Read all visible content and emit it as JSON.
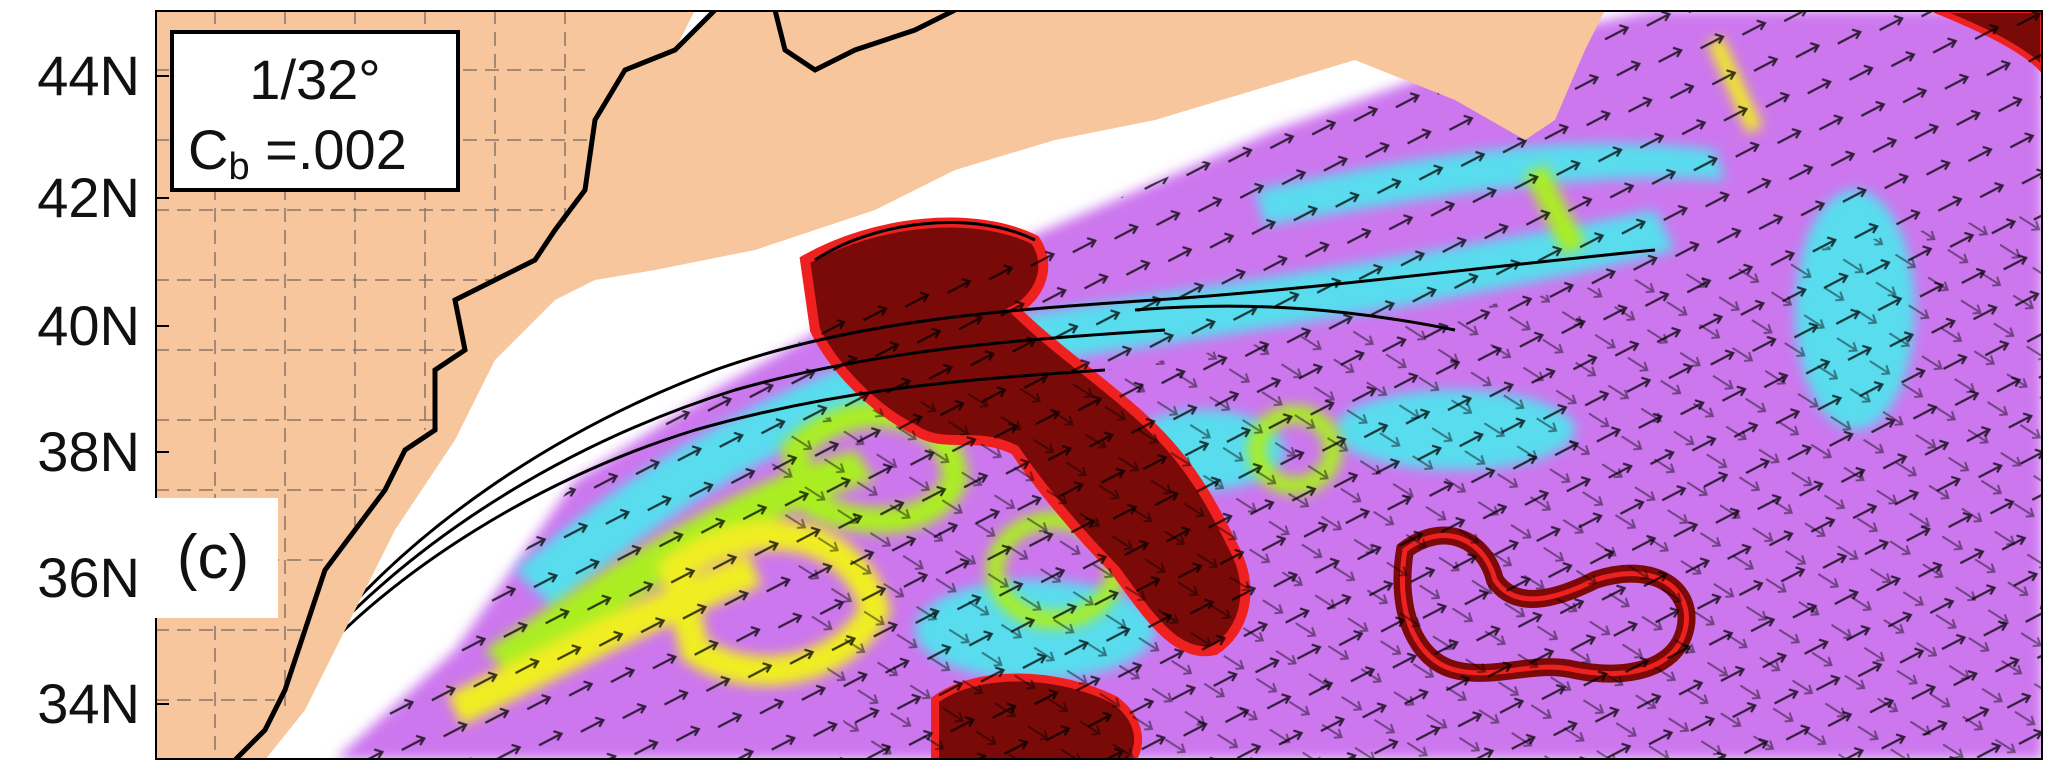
{
  "figure": {
    "panel_label": "(c)",
    "legend": {
      "resolution": "1/32°",
      "cb_symbol": "C",
      "cb_subscript": "b",
      "cb_value": " =.002"
    }
  },
  "axes": {
    "latitude_labels": [
      "44N",
      "42N",
      "40N",
      "38N",
      "36N",
      "34N"
    ],
    "lat_range": [
      "33N",
      "45N"
    ]
  },
  "colors": {
    "land": "#f8c69c",
    "water_bg": "#ffffff",
    "low_speed": "#cc77ee",
    "low_mid_speed": "#aa55e0",
    "mid_speed": "#44eeee",
    "upper_mid_speed": "#aaee22",
    "high_speed": "#f0ee20",
    "higher_speed": "#ee2020",
    "max_speed": "#7a0a08",
    "coastline": "#000000",
    "vectors": "#000000"
  }
}
